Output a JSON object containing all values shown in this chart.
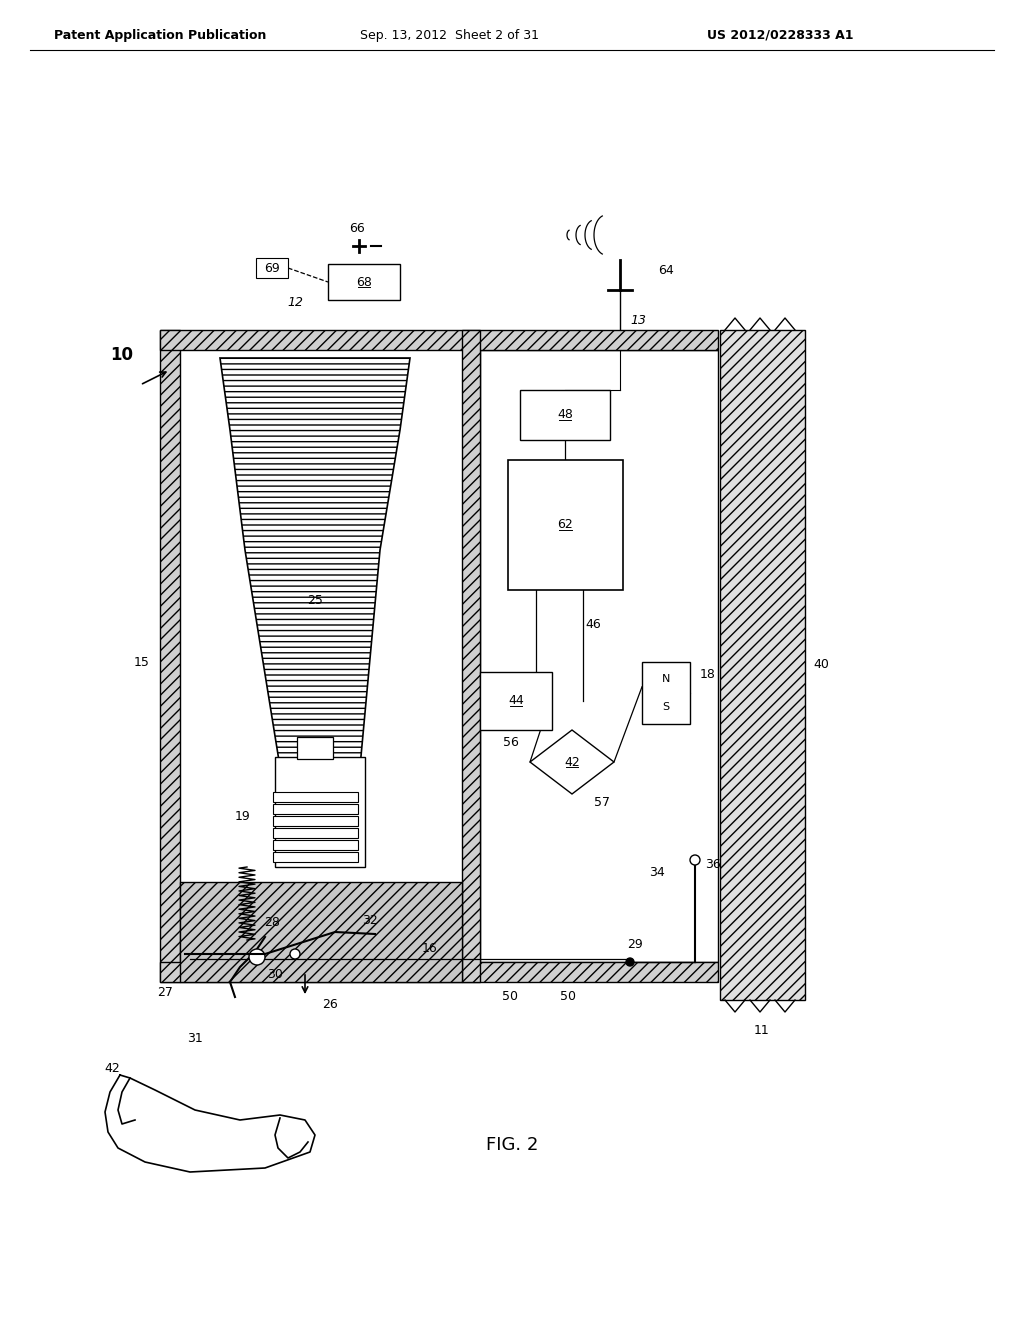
{
  "title": "FIG. 2",
  "header_left": "Patent Application Publication",
  "header_center": "Sep. 13, 2012  Sheet 2 of 31",
  "header_right": "US 2012/0228333 A1",
  "bg_color": "#ffffff",
  "line_color": "#000000",
  "label_fontsize": 9,
  "title_fontsize": 13,
  "header_fontsize": 9
}
